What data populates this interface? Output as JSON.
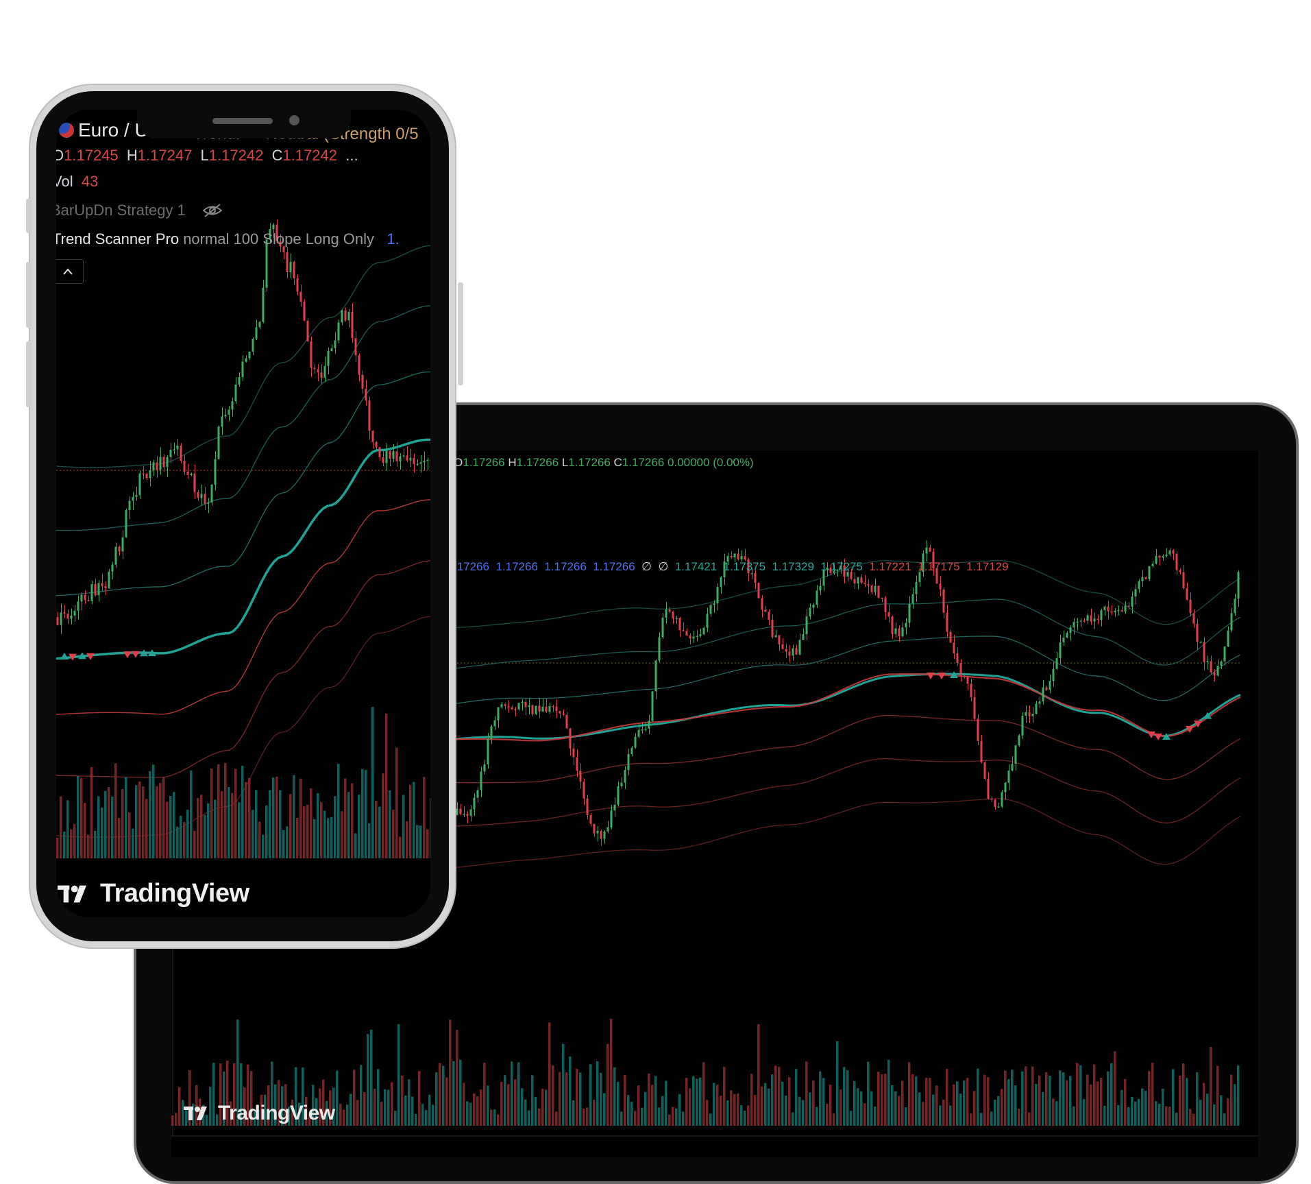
{
  "laptop": {
    "ohlc": {
      "o_label": "O",
      "o": "1.17266",
      "h_label": "H",
      "h": "1.17266",
      "l_label": "L",
      "l": "1.17266",
      "c_label": "C",
      "c": "1.17266",
      "change": "0.00000 (0.00%)"
    },
    "indicator": {
      "blue_values": [
        ".17266",
        "1.17266",
        "1.17266",
        "1.17266"
      ],
      "empty_marks": [
        "∅",
        "∅"
      ],
      "green_values": [
        "1.17421",
        "1.17375",
        "1.17329",
        "1.17275"
      ],
      "red_values": [
        "1.17221",
        "1.17175",
        "1.17129"
      ]
    },
    "logo_text": "TradingView"
  },
  "phone": {
    "symbol": "Euro / U",
    "trend_faded": "Trend: → Neut",
    "trend_visible": "ral (Strength 0/5",
    "ohlc": {
      "o_label": "O",
      "o": "1.17245",
      "h_label": "H",
      "h": "1.17247",
      "l_label": "L",
      "l": "1.17242",
      "c_label": "C",
      "c": "1.17242",
      "more": "..."
    },
    "vol_label": "Vol",
    "vol_value": "43",
    "strategy_label": "BarUpDn Strategy 1",
    "scanner": {
      "name": "Trend Scanner Pro",
      "params": "normal 100 Slope Long Only",
      "value": "1."
    },
    "collapse_icon": "chevron-up",
    "logo_text": "TradingView"
  },
  "colors": {
    "up": "#3fae64",
    "down": "#e0404c",
    "teal": "#1fa394",
    "red_band": "#c43a3a",
    "background": "#000000"
  }
}
